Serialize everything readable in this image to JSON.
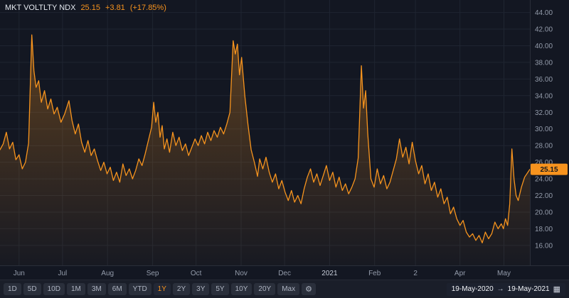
{
  "header": {
    "symbol": "MKT VOLTLTY NDX",
    "last": "25.15",
    "change": "+3.81",
    "change_pct": "(+17.85%)"
  },
  "colors": {
    "bg": "#131722",
    "accent": "#f7931e",
    "line": "#f7941e",
    "grid": "#1f2531",
    "axis_text": "#949cab",
    "axis_text_bright": "#c6ccd8",
    "axis_line": "#2a2e39",
    "tag_text": "#15191f"
  },
  "price_tag": {
    "label": "25.15"
  },
  "toolbar": {
    "ranges": [
      {
        "label": "1D",
        "active": false
      },
      {
        "label": "5D",
        "active": false
      },
      {
        "label": "10D",
        "active": false
      },
      {
        "label": "1M",
        "active": false
      },
      {
        "label": "3M",
        "active": false
      },
      {
        "label": "6M",
        "active": false
      },
      {
        "label": "YTD",
        "active": false
      },
      {
        "label": "1Y",
        "active": true
      },
      {
        "label": "2Y",
        "active": false
      },
      {
        "label": "3Y",
        "active": false
      },
      {
        "label": "5Y",
        "active": false
      },
      {
        "label": "10Y",
        "active": false
      },
      {
        "label": "20Y",
        "active": false
      },
      {
        "label": "Max",
        "active": false
      }
    ],
    "gear_icon": "⚙"
  },
  "date_range": {
    "start": "19-May-2020",
    "separator": "→",
    "end": "19-May-2021",
    "calendar_icon": "▦"
  },
  "chart_data": {
    "type": "area",
    "title": "MKT VOLTLTY NDX",
    "xlabel": "",
    "ylabel": "",
    "grid": true,
    "legend_position": "top-left",
    "series_name": "MKT VOLTLTY NDX",
    "last_value": 25.15,
    "ylim": [
      13.6,
      45.5
    ],
    "y_ticks": [
      {
        "value": 44,
        "label": "44.00"
      },
      {
        "value": 42,
        "label": "42.00"
      },
      {
        "value": 40,
        "label": "40.00"
      },
      {
        "value": 38,
        "label": "38.00"
      },
      {
        "value": 36,
        "label": "36.00"
      },
      {
        "value": 34,
        "label": "34.00"
      },
      {
        "value": 32,
        "label": "32.00"
      },
      {
        "value": 30,
        "label": "30.00"
      },
      {
        "value": 28,
        "label": "28.00"
      },
      {
        "value": 26,
        "label": "26.00"
      },
      {
        "value": 24,
        "label": "24.00"
      },
      {
        "value": 22,
        "label": "22.00"
      },
      {
        "value": 20,
        "label": "20.00"
      },
      {
        "value": 18,
        "label": "18.00"
      },
      {
        "value": 16,
        "label": "16.00"
      }
    ],
    "x_ticks": [
      {
        "label": "Jun",
        "t": 0.036,
        "strong": false
      },
      {
        "label": "Jul",
        "t": 0.118,
        "strong": false
      },
      {
        "label": "Aug",
        "t": 0.203,
        "strong": false
      },
      {
        "label": "Sep",
        "t": 0.288,
        "strong": false
      },
      {
        "label": "Oct",
        "t": 0.37,
        "strong": false
      },
      {
        "label": "Nov",
        "t": 0.455,
        "strong": false
      },
      {
        "label": "Dec",
        "t": 0.537,
        "strong": false
      },
      {
        "label": "2021",
        "t": 0.622,
        "strong": true
      },
      {
        "label": "Feb",
        "t": 0.707,
        "strong": false
      },
      {
        "label": "2",
        "t": 0.784,
        "strong": false
      },
      {
        "label": "Apr",
        "t": 0.868,
        "strong": false
      },
      {
        "label": "May",
        "t": 0.951,
        "strong": false
      }
    ],
    "points": [
      [
        0.0,
        27.5
      ],
      [
        0.006,
        28.2
      ],
      [
        0.012,
        29.6
      ],
      [
        0.018,
        27.6
      ],
      [
        0.024,
        28.4
      ],
      [
        0.03,
        26.3
      ],
      [
        0.036,
        26.9
      ],
      [
        0.042,
        25.2
      ],
      [
        0.048,
        26.0
      ],
      [
        0.054,
        28.3
      ],
      [
        0.06,
        41.3
      ],
      [
        0.064,
        37.0
      ],
      [
        0.068,
        35.0
      ],
      [
        0.073,
        35.8
      ],
      [
        0.078,
        33.2
      ],
      [
        0.084,
        34.6
      ],
      [
        0.09,
        32.4
      ],
      [
        0.096,
        33.6
      ],
      [
        0.102,
        31.8
      ],
      [
        0.108,
        32.6
      ],
      [
        0.115,
        30.8
      ],
      [
        0.122,
        31.8
      ],
      [
        0.13,
        33.4
      ],
      [
        0.136,
        31.0
      ],
      [
        0.142,
        29.4
      ],
      [
        0.148,
        30.6
      ],
      [
        0.154,
        28.4
      ],
      [
        0.16,
        27.2
      ],
      [
        0.166,
        28.6
      ],
      [
        0.172,
        26.8
      ],
      [
        0.178,
        27.6
      ],
      [
        0.184,
        26.2
      ],
      [
        0.19,
        25.0
      ],
      [
        0.196,
        26.0
      ],
      [
        0.202,
        24.6
      ],
      [
        0.208,
        25.4
      ],
      [
        0.214,
        23.8
      ],
      [
        0.22,
        24.8
      ],
      [
        0.226,
        23.6
      ],
      [
        0.232,
        25.8
      ],
      [
        0.238,
        24.4
      ],
      [
        0.244,
        25.2
      ],
      [
        0.25,
        24.0
      ],
      [
        0.256,
        25.0
      ],
      [
        0.262,
        26.4
      ],
      [
        0.268,
        25.6
      ],
      [
        0.274,
        27.0
      ],
      [
        0.28,
        28.6
      ],
      [
        0.286,
        30.2
      ],
      [
        0.29,
        33.2
      ],
      [
        0.294,
        30.8
      ],
      [
        0.298,
        32.0
      ],
      [
        0.302,
        29.0
      ],
      [
        0.306,
        30.4
      ],
      [
        0.31,
        27.6
      ],
      [
        0.315,
        28.8
      ],
      [
        0.32,
        27.2
      ],
      [
        0.326,
        29.6
      ],
      [
        0.332,
        28.0
      ],
      [
        0.338,
        29.0
      ],
      [
        0.344,
        27.4
      ],
      [
        0.35,
        28.2
      ],
      [
        0.356,
        26.8
      ],
      [
        0.362,
        27.8
      ],
      [
        0.368,
        28.8
      ],
      [
        0.374,
        28.0
      ],
      [
        0.38,
        29.2
      ],
      [
        0.386,
        28.2
      ],
      [
        0.392,
        29.6
      ],
      [
        0.398,
        28.6
      ],
      [
        0.404,
        29.8
      ],
      [
        0.41,
        29.0
      ],
      [
        0.416,
        30.2
      ],
      [
        0.422,
        29.4
      ],
      [
        0.428,
        30.6
      ],
      [
        0.434,
        32.0
      ],
      [
        0.44,
        40.6
      ],
      [
        0.444,
        39.0
      ],
      [
        0.448,
        40.2
      ],
      [
        0.452,
        36.5
      ],
      [
        0.456,
        38.6
      ],
      [
        0.462,
        34.0
      ],
      [
        0.468,
        30.5
      ],
      [
        0.474,
        27.5
      ],
      [
        0.48,
        26.0
      ],
      [
        0.486,
        24.3
      ],
      [
        0.49,
        26.4
      ],
      [
        0.496,
        25.2
      ],
      [
        0.502,
        26.6
      ],
      [
        0.508,
        24.8
      ],
      [
        0.514,
        23.6
      ],
      [
        0.52,
        24.6
      ],
      [
        0.526,
        22.8
      ],
      [
        0.532,
        23.8
      ],
      [
        0.538,
        22.4
      ],
      [
        0.544,
        21.4
      ],
      [
        0.55,
        22.6
      ],
      [
        0.556,
        21.2
      ],
      [
        0.562,
        22.0
      ],
      [
        0.568,
        21.0
      ],
      [
        0.574,
        22.8
      ],
      [
        0.58,
        24.2
      ],
      [
        0.586,
        25.2
      ],
      [
        0.592,
        23.6
      ],
      [
        0.598,
        24.6
      ],
      [
        0.604,
        23.2
      ],
      [
        0.61,
        24.4
      ],
      [
        0.616,
        25.6
      ],
      [
        0.622,
        23.8
      ],
      [
        0.628,
        24.8
      ],
      [
        0.634,
        23.0
      ],
      [
        0.64,
        24.2
      ],
      [
        0.646,
        22.6
      ],
      [
        0.652,
        23.4
      ],
      [
        0.658,
        22.2
      ],
      [
        0.664,
        23.0
      ],
      [
        0.67,
        24.0
      ],
      [
        0.676,
        26.5
      ],
      [
        0.682,
        37.6
      ],
      [
        0.686,
        32.5
      ],
      [
        0.69,
        34.6
      ],
      [
        0.694,
        29.5
      ],
      [
        0.7,
        24.0
      ],
      [
        0.706,
        23.0
      ],
      [
        0.712,
        25.2
      ],
      [
        0.718,
        23.4
      ],
      [
        0.724,
        24.4
      ],
      [
        0.73,
        22.8
      ],
      [
        0.736,
        23.6
      ],
      [
        0.742,
        25.0
      ],
      [
        0.748,
        26.4
      ],
      [
        0.754,
        28.8
      ],
      [
        0.76,
        26.6
      ],
      [
        0.766,
        27.8
      ],
      [
        0.772,
        25.8
      ],
      [
        0.778,
        28.4
      ],
      [
        0.784,
        26.2
      ],
      [
        0.79,
        24.6
      ],
      [
        0.796,
        25.6
      ],
      [
        0.802,
        23.4
      ],
      [
        0.808,
        24.6
      ],
      [
        0.814,
        22.6
      ],
      [
        0.82,
        23.6
      ],
      [
        0.826,
        21.8
      ],
      [
        0.832,
        22.8
      ],
      [
        0.838,
        21.0
      ],
      [
        0.844,
        21.8
      ],
      [
        0.85,
        19.8
      ],
      [
        0.856,
        20.6
      ],
      [
        0.862,
        19.2
      ],
      [
        0.868,
        18.4
      ],
      [
        0.874,
        19.0
      ],
      [
        0.88,
        17.6
      ],
      [
        0.886,
        17.0
      ],
      [
        0.892,
        17.4
      ],
      [
        0.898,
        16.6
      ],
      [
        0.904,
        17.2
      ],
      [
        0.91,
        16.3
      ],
      [
        0.916,
        17.6
      ],
      [
        0.922,
        16.8
      ],
      [
        0.928,
        17.4
      ],
      [
        0.934,
        18.8
      ],
      [
        0.94,
        18.0
      ],
      [
        0.946,
        18.6
      ],
      [
        0.95,
        18.0
      ],
      [
        0.954,
        19.2
      ],
      [
        0.958,
        18.4
      ],
      [
        0.962,
        21.0
      ],
      [
        0.966,
        27.6
      ],
      [
        0.97,
        24.0
      ],
      [
        0.974,
        22.0
      ],
      [
        0.978,
        21.4
      ],
      [
        0.984,
        23.0
      ],
      [
        0.99,
        24.2
      ],
      [
        1.0,
        25.15
      ]
    ]
  }
}
